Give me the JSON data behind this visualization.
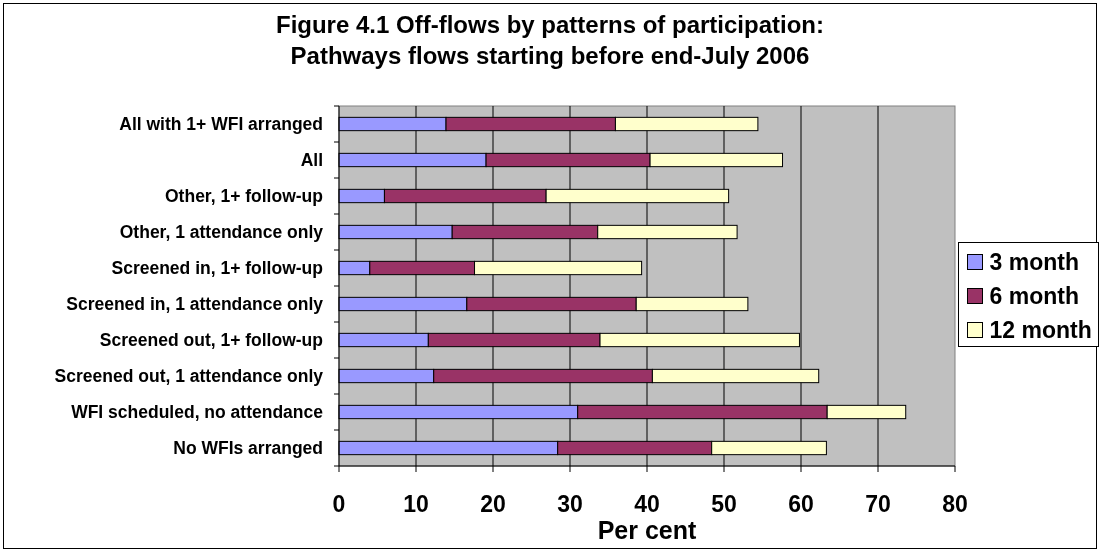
{
  "chart_data": {
    "type": "bar",
    "orientation": "horizontal",
    "stacked": true,
    "title": "Figure 4.1 Off-flows by patterns of participation:\nPathways flows starting before end-July 2006",
    "xlabel": "Per cent",
    "categories": [
      "All with 1+ WFI arranged",
      "All",
      "Other, 1+ follow-up",
      "Other, 1 attendance only",
      "Screened in, 1+ follow-up",
      "Screened in, 1 attendance only",
      "Screened out, 1+ follow-up",
      "Screened out, 1 attendance only",
      "WFI scheduled, no attendance",
      "No WFIs arranged"
    ],
    "series": [
      {
        "name": "3 month",
        "color": "#9999ff",
        "values": [
          13.9,
          19.1,
          5.9,
          14.7,
          4.0,
          16.6,
          11.6,
          12.3,
          31.0,
          28.4
        ]
      },
      {
        "name": "6 month",
        "color": "#993366",
        "values": [
          22.0,
          21.3,
          21.0,
          18.9,
          13.6,
          22.0,
          22.3,
          28.4,
          32.4,
          20.0
        ]
      },
      {
        "name": "12 month",
        "color": "#ffffcc",
        "values": [
          18.5,
          17.2,
          23.7,
          18.1,
          21.7,
          14.5,
          25.9,
          21.6,
          10.2,
          14.9
        ]
      }
    ],
    "xlim": [
      0,
      80
    ],
    "xticks": [
      0,
      10,
      20,
      30,
      40,
      50,
      60,
      70,
      80
    ],
    "grid": "x",
    "legend": "right"
  }
}
